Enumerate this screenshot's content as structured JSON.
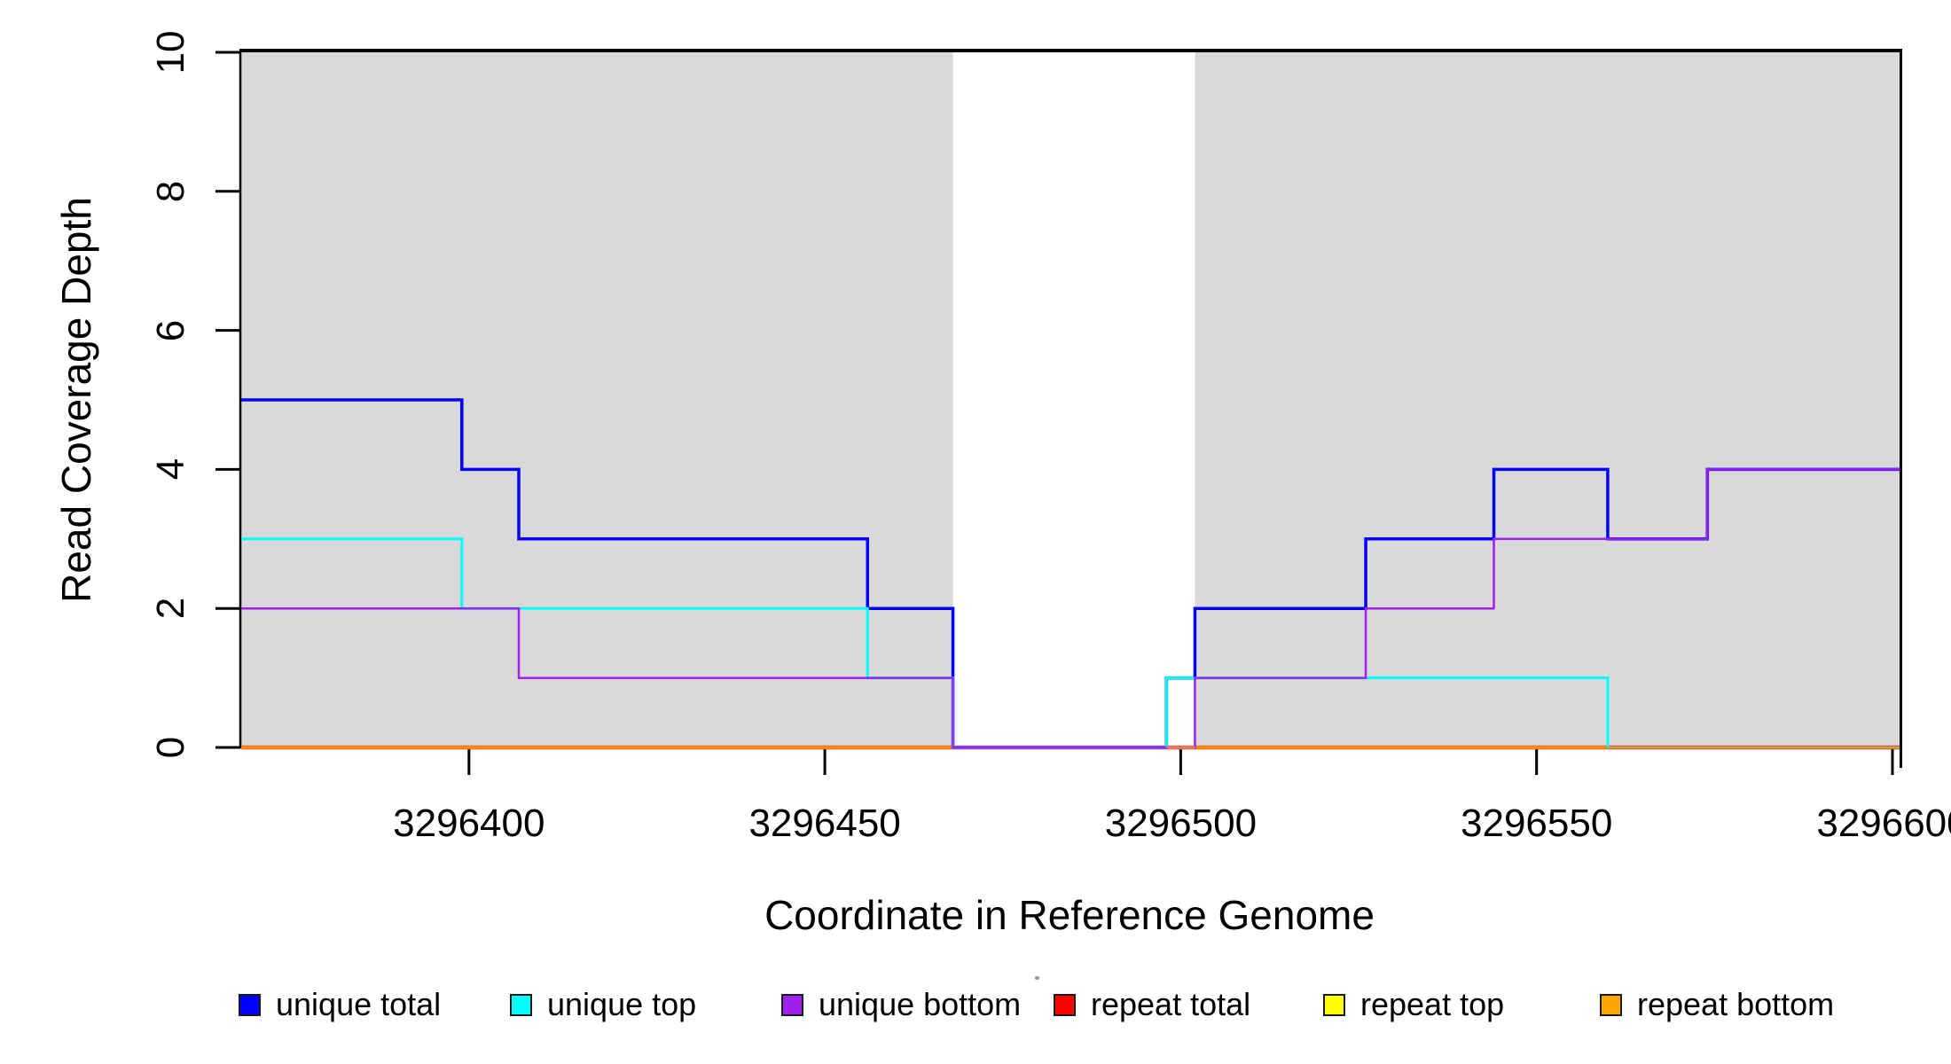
{
  "chart_data": {
    "type": "line",
    "subtype": "step",
    "title": "",
    "xlabel": "Coordinate in Reference Genome",
    "ylabel": "Read Coverage Depth",
    "xlim": [
      3296368,
      3296601
    ],
    "ylim": [
      0,
      10
    ],
    "x_ticks": [
      3296400,
      3296450,
      3296500,
      3296550,
      3296600
    ],
    "x_tick_labels": [
      "3296400",
      "3296450",
      "3296500",
      "3296550",
      "3296600"
    ],
    "y_ticks": [
      0,
      2,
      4,
      6,
      8,
      10
    ],
    "y_tick_labels": [
      "0",
      "2",
      "4",
      "6",
      "8",
      "10"
    ],
    "grid": false,
    "legend_position": "bottom",
    "plot_background": "#FFFFFF",
    "shaded_region_color": "#D9D9D9",
    "shaded_regions": [
      [
        3296368,
        3296468
      ],
      [
        3296502,
        3296601
      ]
    ],
    "series": [
      {
        "name": "unique total",
        "color": "#0000FF",
        "steps": [
          [
            3296368,
            5
          ],
          [
            3296399,
            4
          ],
          [
            3296407,
            3
          ],
          [
            3296456,
            2
          ],
          [
            3296468,
            0
          ],
          [
            3296498,
            1
          ],
          [
            3296502,
            2
          ],
          [
            3296526,
            3
          ],
          [
            3296544,
            4
          ],
          [
            3296560,
            3
          ],
          [
            3296574,
            4
          ]
        ]
      },
      {
        "name": "unique top",
        "color": "#00FFFF",
        "end_x": 3296560,
        "steps": [
          [
            3296368,
            3
          ],
          [
            3296399,
            2
          ],
          [
            3296456,
            1
          ],
          [
            3296468,
            0
          ],
          [
            3296498,
            1
          ],
          [
            3296560,
            0
          ]
        ]
      },
      {
        "name": "unique bottom",
        "color": "#A020F0",
        "steps": [
          [
            3296368,
            2
          ],
          [
            3296407,
            1
          ],
          [
            3296468,
            0
          ],
          [
            3296502,
            1
          ],
          [
            3296526,
            2
          ],
          [
            3296544,
            3
          ],
          [
            3296574,
            4
          ]
        ]
      },
      {
        "name": "repeat total",
        "color": "#FF0000",
        "steps": [
          [
            3296368,
            0
          ]
        ]
      },
      {
        "name": "repeat top",
        "color": "#FFFF00",
        "steps": [
          [
            3296368,
            0
          ]
        ]
      },
      {
        "name": "repeat bottom",
        "color": "#FFA500",
        "end_x": 3296560,
        "steps": [
          [
            3296368,
            0
          ]
        ]
      }
    ]
  }
}
